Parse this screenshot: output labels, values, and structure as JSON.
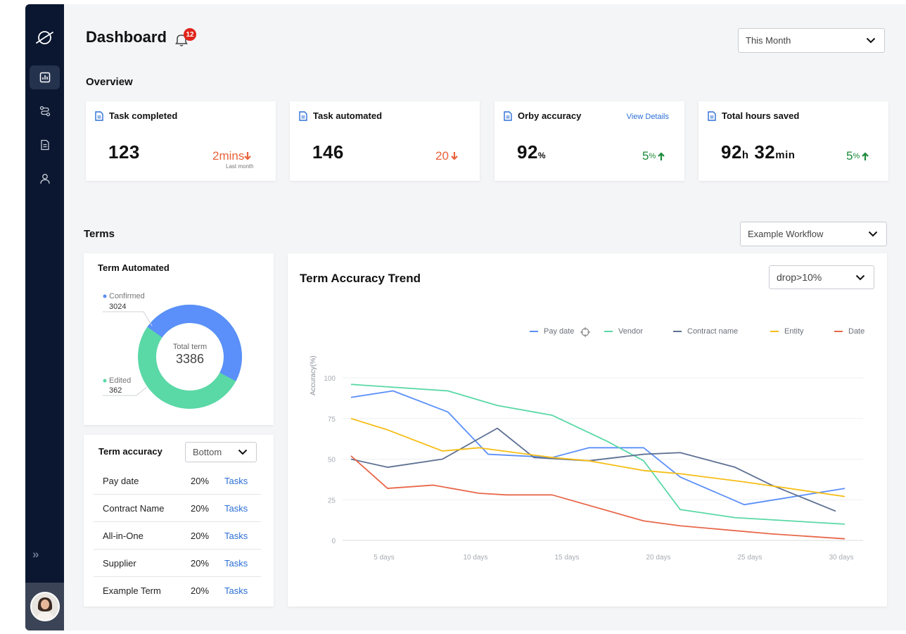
{
  "header": {
    "title": "Dashboard",
    "notification_count": "12",
    "period_select": "This Month"
  },
  "overview": {
    "title": "Overview",
    "cards": [
      {
        "label": "Task completed",
        "value": "123",
        "change": "2mins",
        "change_direction": "down",
        "change_sub": "Last month"
      },
      {
        "label": "Task automated",
        "value": "146",
        "change": "20",
        "change_direction": "down"
      },
      {
        "label": "Orby accuracy",
        "value": "92",
        "value_unit": "%",
        "link": "View Details",
        "change": "5",
        "change_unit": "%",
        "change_direction": "up"
      },
      {
        "label": "Total hours saved",
        "hours": "92",
        "hours_unit": "h",
        "minutes": "32",
        "minutes_unit": "min",
        "change": "5",
        "change_unit": "%",
        "change_direction": "up"
      }
    ]
  },
  "terms": {
    "title": "Terms",
    "workflow_select": "Example Workflow",
    "term_automated": {
      "title": "Term Automated",
      "confirmed_label": "Confirmed",
      "confirmed_value": "3024",
      "edited_label": "Edited",
      "edited_value": "362",
      "total_label": "Total term",
      "total_value": "3386"
    },
    "term_accuracy": {
      "title": "Term accuracy",
      "filter": "Bottom",
      "rows": [
        {
          "term": "Pay date",
          "percent": "20%",
          "link": "Tasks"
        },
        {
          "term": "Contract Name",
          "percent": "20%",
          "link": "Tasks"
        },
        {
          "term": "All-in-One",
          "percent": "20%",
          "link": "Tasks"
        },
        {
          "term": "Supplier",
          "percent": "20%",
          "link": "Tasks"
        },
        {
          "term": "Example Term",
          "percent": "20%",
          "link": "Tasks"
        }
      ]
    }
  },
  "colors": {
    "confirmed": "#5b8ff9",
    "edited": "#5ad8a6",
    "pay_date": "#5b8ff9",
    "vendor": "#5ad8a6",
    "contract_name": "#5d7092",
    "entity": "#f6bd16",
    "date": "#e8684a",
    "down": "#e8623b",
    "up": "#1b8a3a",
    "link": "#2c6fd6",
    "badge": "#e0251b"
  },
  "chart_data": {
    "type": "line",
    "title": "Term Accuracy Trend",
    "filter_select": "drop>10%",
    "ylabel": "Accuracy(%)",
    "xlabel": "",
    "ylim": [
      0,
      100
    ],
    "yticks": [
      0,
      25,
      50,
      75,
      100
    ],
    "x": [
      3,
      5,
      7,
      9,
      10,
      11,
      13,
      15,
      17,
      19,
      20,
      21,
      23,
      25,
      27,
      30
    ],
    "xtick_values": [
      5,
      10,
      15,
      20,
      25,
      30
    ],
    "xtick_labels": [
      "5 days",
      "10 days",
      "15 days",
      "20 days",
      "25 days",
      "30 days"
    ],
    "grid": true,
    "legend_position": "top-right",
    "series": [
      {
        "name": "Pay date",
        "color": "#5b8ff9",
        "points": [
          [
            3,
            88
          ],
          [
            5.3,
            92
          ],
          [
            8.3,
            79
          ],
          [
            10.5,
            53
          ],
          [
            14,
            51
          ],
          [
            16,
            57
          ],
          [
            19,
            57
          ],
          [
            21,
            39
          ],
          [
            24.5,
            22
          ],
          [
            30,
            32
          ]
        ]
      },
      {
        "name": "Vendor",
        "color": "#5ad8a6",
        "points": [
          [
            3,
            96
          ],
          [
            8.3,
            92
          ],
          [
            11,
            83
          ],
          [
            14,
            77
          ],
          [
            17,
            61
          ],
          [
            19,
            49
          ],
          [
            21,
            19
          ],
          [
            24,
            14
          ],
          [
            30,
            10
          ]
        ]
      },
      {
        "name": "Contract name",
        "color": "#5d7092",
        "points": [
          [
            3,
            50
          ],
          [
            5,
            45
          ],
          [
            8,
            50
          ],
          [
            11,
            69
          ],
          [
            13,
            51
          ],
          [
            16,
            49
          ],
          [
            19,
            53
          ],
          [
            21,
            54
          ],
          [
            24,
            45
          ],
          [
            26,
            34
          ],
          [
            29.5,
            18
          ]
        ]
      },
      {
        "name": "Entity",
        "color": "#f6bd16",
        "points": [
          [
            3,
            75
          ],
          [
            5,
            68
          ],
          [
            8,
            55
          ],
          [
            10,
            57
          ],
          [
            14,
            51
          ],
          [
            16,
            49
          ],
          [
            19,
            43
          ],
          [
            21,
            41
          ],
          [
            24.5,
            36
          ],
          [
            30,
            27
          ]
        ]
      },
      {
        "name": "Date",
        "color": "#e8684a",
        "points": [
          [
            3,
            52
          ],
          [
            5,
            32
          ],
          [
            7.5,
            34
          ],
          [
            10,
            29
          ],
          [
            11.5,
            28
          ],
          [
            14,
            28
          ],
          [
            19,
            12
          ],
          [
            21,
            9
          ],
          [
            26,
            4
          ],
          [
            30,
            1
          ]
        ]
      }
    ]
  }
}
